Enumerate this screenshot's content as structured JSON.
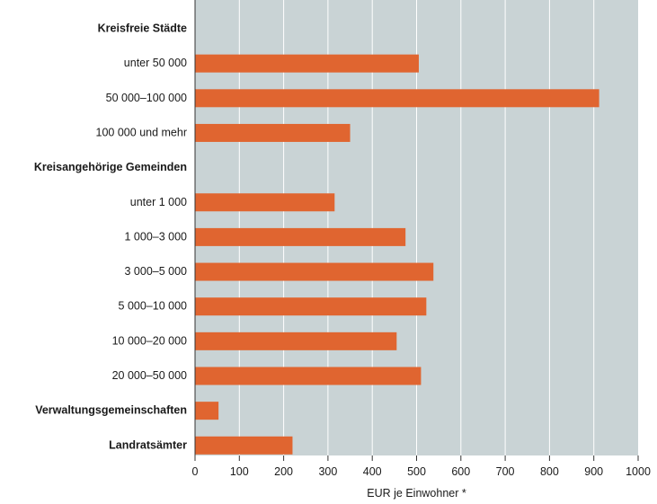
{
  "chart_data": {
    "type": "bar",
    "orientation": "horizontal",
    "categories": [
      {
        "label": "Kreisfreie Städte",
        "heading": true,
        "value": null
      },
      {
        "label": "unter 50 000",
        "heading": false,
        "value": 505
      },
      {
        "label": "50 000–100 000",
        "heading": false,
        "value": 912
      },
      {
        "label": "100 000 und mehr",
        "heading": false,
        "value": 350
      },
      {
        "label": "Kreisangehörige Gemeinden",
        "heading": true,
        "value": null
      },
      {
        "label": "unter 1 000",
        "heading": false,
        "value": 315
      },
      {
        "label": "1 000–3 000",
        "heading": false,
        "value": 475
      },
      {
        "label": "3 000–5 000",
        "heading": false,
        "value": 538
      },
      {
        "label": "5 000–10 000",
        "heading": false,
        "value": 522
      },
      {
        "label": "10 000–20 000",
        "heading": false,
        "value": 455
      },
      {
        "label": "20 000–50 000",
        "heading": false,
        "value": 510
      },
      {
        "label": "Verwaltungsgemeinschaften",
        "heading": true,
        "value": 53
      },
      {
        "label": "Landratsämter",
        "heading": true,
        "value": 220
      }
    ],
    "xlabel": "EUR je Einwohner *",
    "xlim": [
      0,
      1000
    ],
    "xticks": [
      0,
      100,
      200,
      300,
      400,
      500,
      600,
      700,
      800,
      900,
      1000
    ],
    "grid": true,
    "colors": {
      "bar": "#e06530",
      "plot_background": "#c9d3d5",
      "gridline": "#ffffff"
    }
  }
}
